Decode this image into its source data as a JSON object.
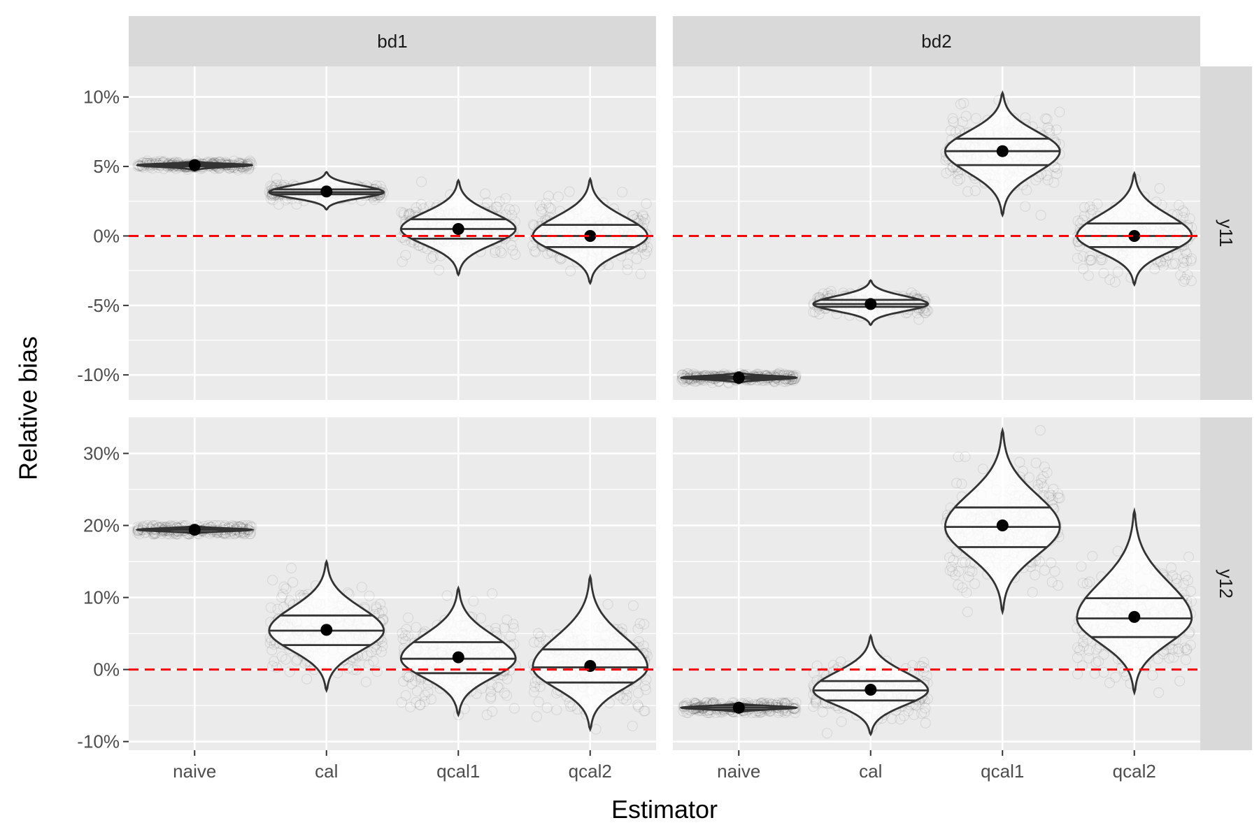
{
  "chart_data": {
    "type": "violin",
    "xlabel": "Estimator",
    "ylabel": "Relative bias",
    "x_categories": [
      "naive",
      "cal",
      "qcal1",
      "qcal2"
    ],
    "facet_columns": [
      "bd1",
      "bd2"
    ],
    "facet_rows": [
      "y11",
      "y12"
    ],
    "reference_line": {
      "y": 0,
      "style": "dashed",
      "color": "#ff0000"
    },
    "rows": [
      {
        "label": "y11",
        "ylim": [
          -11.8,
          12.2
        ],
        "y_ticks": [
          -10,
          -5,
          0,
          5,
          10
        ],
        "y_tick_labels": [
          "-10%",
          "-5%",
          "0%",
          "5%",
          "10%"
        ],
        "y_minor": [
          -7.5,
          -2.5,
          2.5,
          7.5
        ]
      },
      {
        "label": "y12",
        "ylim": [
          -11.2,
          35.0
        ],
        "y_ticks": [
          -10,
          0,
          10,
          20,
          30
        ],
        "y_tick_labels": [
          "-10%",
          "0%",
          "10%",
          "20%",
          "30%"
        ],
        "y_minor": [
          -5,
          5,
          15,
          25
        ]
      }
    ],
    "panels": [
      {
        "column": "bd1",
        "row": "y11",
        "estimators": [
          {
            "x": "naive",
            "mean": 5.1,
            "q25": 5.0,
            "median": 5.1,
            "q75": 5.2,
            "min": 4.7,
            "max": 5.4
          },
          {
            "x": "cal",
            "mean": 3.2,
            "q25": 3.0,
            "median": 3.15,
            "q75": 3.35,
            "min": 1.9,
            "max": 4.6
          },
          {
            "x": "qcal1",
            "mean": 0.5,
            "q25": -0.2,
            "median": 0.5,
            "q75": 1.2,
            "min": -2.8,
            "max": 4.0
          },
          {
            "x": "qcal2",
            "mean": 0.0,
            "q25": -0.8,
            "median": 0.0,
            "q75": 0.8,
            "min": -3.4,
            "max": 4.1
          }
        ]
      },
      {
        "column": "bd2",
        "row": "y11",
        "estimators": [
          {
            "x": "naive",
            "mean": -10.2,
            "q25": -10.3,
            "median": -10.2,
            "q75": -10.1,
            "min": -10.6,
            "max": -9.8
          },
          {
            "x": "cal",
            "mean": -4.9,
            "q25": -5.1,
            "median": -4.9,
            "q75": -4.6,
            "min": -6.4,
            "max": -3.2
          },
          {
            "x": "qcal1",
            "mean": 6.1,
            "q25": 5.1,
            "median": 6.1,
            "q75": 7.0,
            "min": 1.5,
            "max": 10.3
          },
          {
            "x": "qcal2",
            "mean": 0.0,
            "q25": -0.8,
            "median": 0.0,
            "q75": 0.9,
            "min": -3.5,
            "max": 4.5
          }
        ]
      },
      {
        "column": "bd1",
        "row": "y12",
        "estimators": [
          {
            "x": "naive",
            "mean": 19.4,
            "q25": 19.1,
            "median": 19.4,
            "q75": 19.6,
            "min": 18.8,
            "max": 20.0
          },
          {
            "x": "cal",
            "mean": 5.5,
            "q25": 3.4,
            "median": 5.4,
            "q75": 7.5,
            "min": -2.9,
            "max": 15.0
          },
          {
            "x": "qcal1",
            "mean": 1.7,
            "q25": -0.5,
            "median": 1.5,
            "q75": 3.8,
            "min": -6.3,
            "max": 11.3
          },
          {
            "x": "qcal2",
            "mean": 0.5,
            "q25": -1.8,
            "median": 0.3,
            "q75": 2.8,
            "min": -8.3,
            "max": 12.9
          }
        ]
      },
      {
        "column": "bd2",
        "row": "y12",
        "estimators": [
          {
            "x": "naive",
            "mean": -5.3,
            "q25": -5.6,
            "median": -5.3,
            "q75": -5.0,
            "min": -6.0,
            "max": -4.6
          },
          {
            "x": "cal",
            "mean": -2.8,
            "q25": -4.3,
            "median": -2.9,
            "q75": -1.6,
            "min": -9.0,
            "max": 4.7
          },
          {
            "x": "qcal1",
            "mean": 20.0,
            "q25": 17.0,
            "median": 19.8,
            "q75": 22.5,
            "min": 8.0,
            "max": 33.2
          },
          {
            "x": "qcal2",
            "mean": 7.3,
            "q25": 4.5,
            "median": 7.1,
            "q75": 9.9,
            "min": -3.2,
            "max": 22.0
          }
        ]
      }
    ]
  }
}
